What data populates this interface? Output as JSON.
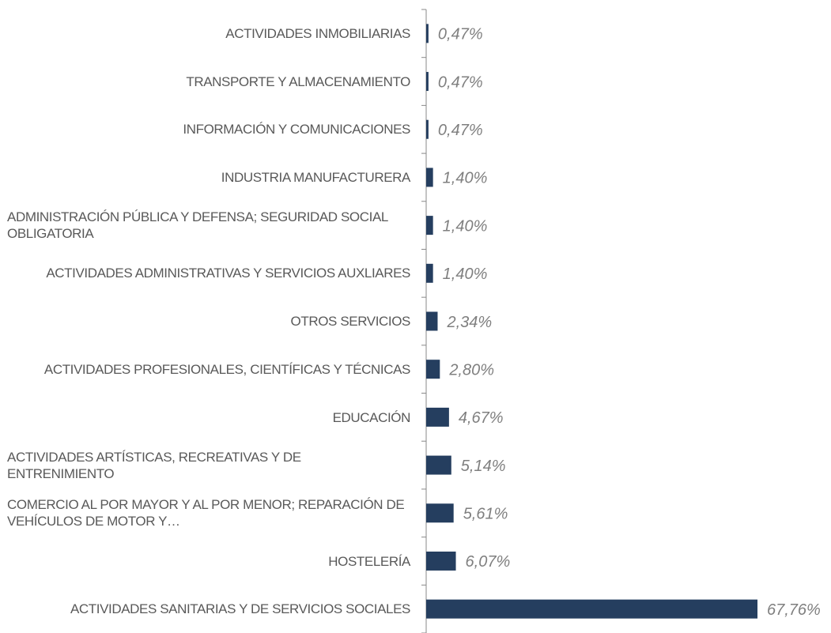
{
  "chart_data": {
    "type": "bar",
    "orientation": "horizontal",
    "color": "#253e5f",
    "categories": [
      "ACTIVIDADES INMOBILIARIAS",
      "TRANSPORTE Y ALMACENAMIENTO",
      "INFORMACIÓN Y COMUNICACIONES",
      "INDUSTRIA MANUFACTURERA",
      "ADMINISTRACIÓN PÚBLICA Y DEFENSA; SEGURIDAD SOCIAL OBLIGATORIA",
      "ACTIVIDADES ADMINISTRATIVAS Y SERVICIOS AUXLIARES",
      "OTROS SERVICIOS",
      "ACTIVIDADES PROFESIONALES, CIENTÍFICAS Y TÉCNICAS",
      "EDUCACIÓN",
      "ACTIVIDADES ARTÍSTICAS, RECREATIVAS Y DE ENTRENIMIENTO",
      "COMERCIO AL POR MAYOR Y AL POR MENOR; REPARACIÓN DE VEHÍCULOS DE MOTOR Y…",
      "HOSTELERÍA",
      "ACTIVIDADES SANITARIAS Y DE SERVICIOS SOCIALES"
    ],
    "values": [
      0.47,
      0.47,
      0.47,
      1.4,
      1.4,
      1.4,
      2.34,
      2.8,
      4.67,
      5.14,
      5.61,
      6.07,
      67.76
    ],
    "value_labels": [
      "0,47%",
      "0,47%",
      "0,47%",
      "1,40%",
      "1,40%",
      "1,40%",
      "2,34%",
      "2,80%",
      "4,67%",
      "5,14%",
      "5,61%",
      "6,07%",
      "67,76%"
    ]
  }
}
